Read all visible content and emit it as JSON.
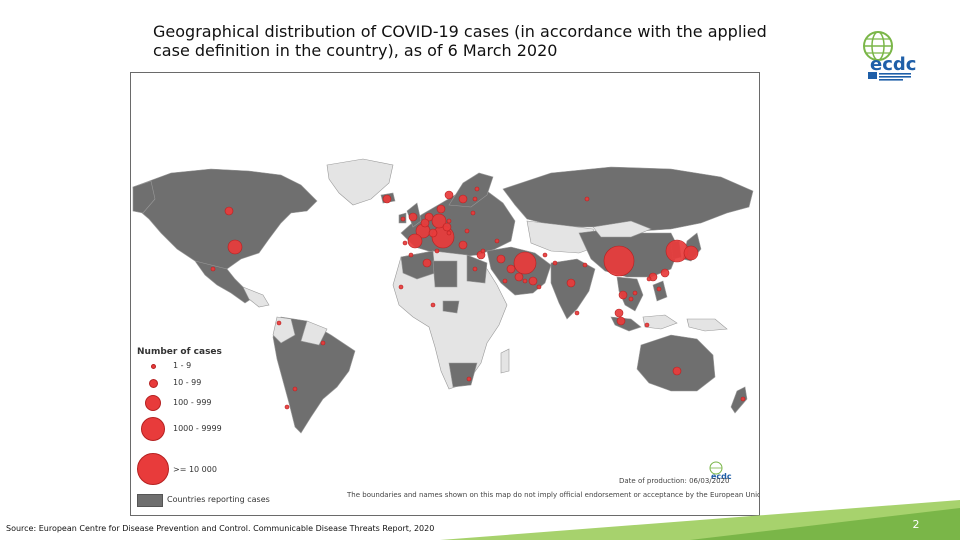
{
  "slide": {
    "title": "Geographical distribution of COVID-19 cases (in accordance with the applied case definition in the country), as of 6 March 2020",
    "source": "Source: European Centre for Disease Prevention and Control. Communicable Disease Threats Report, 2020",
    "page_number": "2",
    "colors": {
      "accent_green": "#7ab648",
      "corner_light_green": "#a7d26d",
      "logo_blue": "#1f5fa8"
    }
  },
  "logo": {
    "text": "ecdc",
    "icon": "ecdc-globe-logo"
  },
  "map": {
    "colors": {
      "reporting_country": "#6f6f6f",
      "non_reporting_country": "#e4e4e4",
      "case_marker": "#e83b3b",
      "case_marker_stroke": "#b52020",
      "ocean": "#ffffff"
    },
    "legend": {
      "title": "Number of cases",
      "items": [
        {
          "label": "1 - 9",
          "size_class": 1
        },
        {
          "label": "10 - 99",
          "size_class": 2
        },
        {
          "label": "100 - 999",
          "size_class": 3
        },
        {
          "label": "1000 - 9999",
          "size_class": 4
        },
        {
          "label": ">= 10 000",
          "size_class": 5
        }
      ],
      "reporting_label": "Countries reporting cases"
    },
    "date_of_production": "Date of production: 06/03/2020",
    "disclaimer": "The boundaries and names shown on this map do not imply official endorsement or acceptance by the European Union",
    "mini_logo_text": "ecdc",
    "markers": [
      {
        "region": "China",
        "size_class": 5
      },
      {
        "region": "South Korea",
        "size_class": 4
      },
      {
        "region": "Japan",
        "size_class": 3
      },
      {
        "region": "Iran",
        "size_class": 4
      },
      {
        "region": "Italy",
        "size_class": 4
      },
      {
        "region": "France",
        "size_class": 3
      },
      {
        "region": "Germany",
        "size_class": 3
      },
      {
        "region": "Spain",
        "size_class": 3
      },
      {
        "region": "United Kingdom",
        "size_class": 2
      },
      {
        "region": "Switzerland",
        "size_class": 2
      },
      {
        "region": "Netherlands",
        "size_class": 2
      },
      {
        "region": "Norway",
        "size_class": 2
      },
      {
        "region": "Sweden",
        "size_class": 2
      },
      {
        "region": "United States",
        "size_class": 3
      },
      {
        "region": "Canada",
        "size_class": 2
      },
      {
        "region": "Singapore",
        "size_class": 2
      },
      {
        "region": "Thailand",
        "size_class": 2
      },
      {
        "region": "Malaysia",
        "size_class": 2
      },
      {
        "region": "Australia",
        "size_class": 2
      },
      {
        "region": "Bahrain",
        "size_class": 2
      },
      {
        "region": "Kuwait",
        "size_class": 2
      },
      {
        "region": "Iceland",
        "size_class": 2
      },
      {
        "region": "Vietnam",
        "size_class": 1
      },
      {
        "region": "India",
        "size_class": 2
      },
      {
        "region": "Brazil",
        "size_class": 1
      },
      {
        "region": "Mexico",
        "size_class": 1
      },
      {
        "region": "Ecuador",
        "size_class": 1
      },
      {
        "region": "Argentina",
        "size_class": 1
      },
      {
        "region": "Chile",
        "size_class": 1
      },
      {
        "region": "Algeria",
        "size_class": 2
      },
      {
        "region": "Egypt",
        "size_class": 1
      },
      {
        "region": "Nigeria",
        "size_class": 1
      },
      {
        "region": "South Africa",
        "size_class": 1
      },
      {
        "region": "Senegal",
        "size_class": 1
      },
      {
        "region": "Israel",
        "size_class": 2
      },
      {
        "region": "Iraq",
        "size_class": 2
      },
      {
        "region": "UAE",
        "size_class": 2
      },
      {
        "region": "Philippines",
        "size_class": 1
      },
      {
        "region": "Indonesia",
        "size_class": 1
      },
      {
        "region": "Russia",
        "size_class": 1
      },
      {
        "region": "Taiwan",
        "size_class": 2
      },
      {
        "region": "Hong Kong",
        "size_class": 2
      },
      {
        "region": "New Zealand",
        "size_class": 1
      },
      {
        "region": "Cambodia",
        "size_class": 1
      },
      {
        "region": "Nepal",
        "size_class": 1
      },
      {
        "region": "Sri Lanka",
        "size_class": 1
      },
      {
        "region": "Pakistan",
        "size_class": 1
      },
      {
        "region": "Afghanistan",
        "size_class": 1
      },
      {
        "region": "Georgia",
        "size_class": 1
      },
      {
        "region": "Belarus",
        "size_class": 1
      },
      {
        "region": "Greece",
        "size_class": 2
      },
      {
        "region": "Austria",
        "size_class": 2
      },
      {
        "region": "Belgium",
        "size_class": 2
      },
      {
        "region": "Denmark",
        "size_class": 2
      },
      {
        "region": "Finland",
        "size_class": 1
      },
      {
        "region": "Czechia",
        "size_class": 1
      },
      {
        "region": "Croatia",
        "size_class": 1
      },
      {
        "region": "Portugal",
        "size_class": 1
      },
      {
        "region": "Ireland",
        "size_class": 1
      },
      {
        "region": "Romania",
        "size_class": 1
      },
      {
        "region": "Estonia",
        "size_class": 1
      },
      {
        "region": "Lebanon",
        "size_class": 1
      },
      {
        "region": "Oman",
        "size_class": 1
      },
      {
        "region": "Qatar",
        "size_class": 1
      },
      {
        "region": "Saudi Arabia",
        "size_class": 1
      },
      {
        "region": "Tunisia",
        "size_class": 1
      },
      {
        "region": "Morocco",
        "size_class": 1
      },
      {
        "region": "Macau",
        "size_class": 1
      }
    ]
  }
}
